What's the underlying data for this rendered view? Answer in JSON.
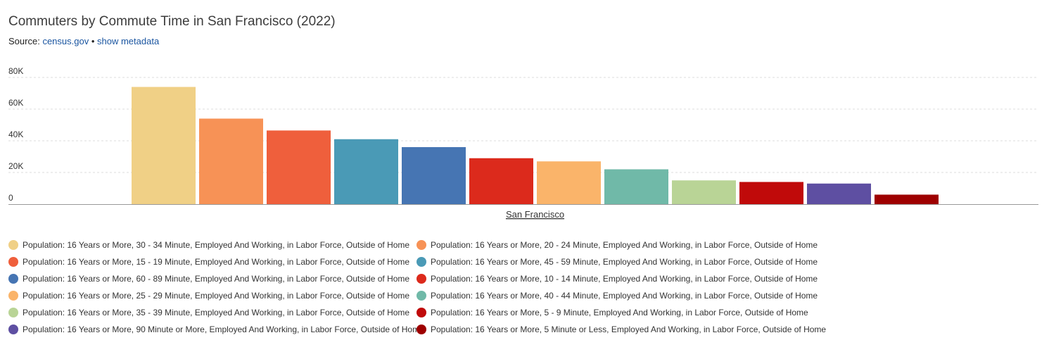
{
  "title": "Commuters by Commute Time in San Francisco (2022)",
  "source": {
    "prefix": "Source:",
    "link": "census.gov",
    "separator": "•",
    "metadata_link": "show metadata"
  },
  "chart_data": {
    "type": "bar",
    "categories": [
      "San Francisco"
    ],
    "ylim": [
      0,
      80000
    ],
    "yticks": [
      {
        "value": 0,
        "label": "0"
      },
      {
        "value": 20000,
        "label": "20K"
      },
      {
        "value": 40000,
        "label": "40K"
      },
      {
        "value": 60000,
        "label": "60K"
      },
      {
        "value": 80000,
        "label": "80K"
      }
    ],
    "grid": true,
    "legend_position": "bottom",
    "series": [
      {
        "name": "Population: 16 Years or More, 30 - 34 Minute, Employed And Working, in Labor Force, Outside of Home",
        "color": "#f0d086",
        "values": [
          74000
        ]
      },
      {
        "name": "Population: 16 Years or More, 20 - 24 Minute, Employed And Working, in Labor Force, Outside of Home",
        "color": "#f79256",
        "values": [
          54000
        ]
      },
      {
        "name": "Population: 16 Years or More, 15 - 19 Minute, Employed And Working, in Labor Force, Outside of Home",
        "color": "#ef5f3c",
        "values": [
          46500
        ]
      },
      {
        "name": "Population: 16 Years or More, 45 - 59 Minute, Employed And Working, in Labor Force, Outside of Home",
        "color": "#4a9ab6",
        "values": [
          41000
        ]
      },
      {
        "name": "Population: 16 Years or More, 60 - 89 Minute, Employed And Working, in Labor Force, Outside of Home",
        "color": "#4675b3",
        "values": [
          36000
        ]
      },
      {
        "name": "Population: 16 Years or More, 10 - 14 Minute, Employed And Working, in Labor Force, Outside of Home",
        "color": "#dc2a1c",
        "values": [
          29000
        ]
      },
      {
        "name": "Population: 16 Years or More, 25 - 29 Minute, Employed And Working, in Labor Force, Outside of Home",
        "color": "#fab46a",
        "values": [
          27000
        ]
      },
      {
        "name": "Population: 16 Years or More, 40 - 44 Minute, Employed And Working, in Labor Force, Outside of Home",
        "color": "#70b9a8",
        "values": [
          22000
        ]
      },
      {
        "name": "Population: 16 Years or More, 35 - 39 Minute, Employed And Working, in Labor Force, Outside of Home",
        "color": "#b9d496",
        "values": [
          15000
        ]
      },
      {
        "name": "Population: 16 Years or More, 5 - 9 Minute, Employed And Working, in Labor Force, Outside of Home",
        "color": "#c00a0a",
        "values": [
          14000
        ]
      },
      {
        "name": "Population: 16 Years or More, 90 Minute or More, Employed And Working, in Labor Force, Outside of Home",
        "color": "#5e4fa2",
        "values": [
          13000
        ]
      },
      {
        "name": "Population: 16 Years or More, 5 Minute or Less, Employed And Working, in Labor Force, Outside of Home",
        "color": "#9e0000",
        "values": [
          6000
        ]
      }
    ]
  }
}
